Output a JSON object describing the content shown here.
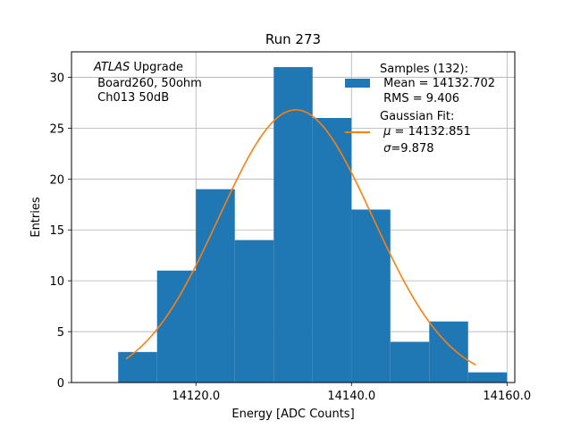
{
  "chart_data": {
    "type": "bar",
    "title": "Run 273",
    "xlabel": "Energy [ADC Counts]",
    "ylabel": "Entries",
    "xlim": [
      14104.0,
      14161.0
    ],
    "ylim": [
      0,
      32.5
    ],
    "xticks": [
      14120.0,
      14140.0,
      14160.0
    ],
    "xtick_labels": [
      "14120.0",
      "14140.0",
      "14160.0"
    ],
    "yticks": [
      0,
      5,
      10,
      15,
      20,
      25,
      30
    ],
    "ytick_labels": [
      "0",
      "5",
      "10",
      "15",
      "20",
      "25",
      "30"
    ],
    "grid": true,
    "bar_color": "#1f77b4",
    "fit_color": "#ff7f0e",
    "histogram": {
      "bin_edges": [
        14110.0,
        14115.0,
        14120.0,
        14125.0,
        14130.0,
        14135.0,
        14140.0,
        14145.0,
        14150.0,
        14155.0,
        14160.0
      ],
      "counts": [
        3,
        11,
        19,
        14,
        31,
        26,
        17,
        4,
        6,
        1
      ]
    },
    "fit": {
      "mu": 14132.851,
      "sigma": 9.878,
      "peak": 26.8,
      "x_range": [
        14111.0,
        14156.0
      ]
    },
    "annotation": {
      "line1_italic": "ATLAS",
      "line1_rest": " Upgrade",
      "line2": " Board260, 50ohm",
      "line3": " Ch013 50dB"
    },
    "legend": {
      "placement": "top-right",
      "hist_title": "Samples (132):",
      "hist_line1": " Mean = 14132.702",
      "hist_line2": " RMS = 9.406",
      "fit_title": "Gaussian Fit:",
      "fit_mu_symbol": "μ",
      "fit_mu_rest": " = 14132.851",
      "fit_sigma_symbol": "σ",
      "fit_sigma_rest": "=9.878"
    }
  }
}
